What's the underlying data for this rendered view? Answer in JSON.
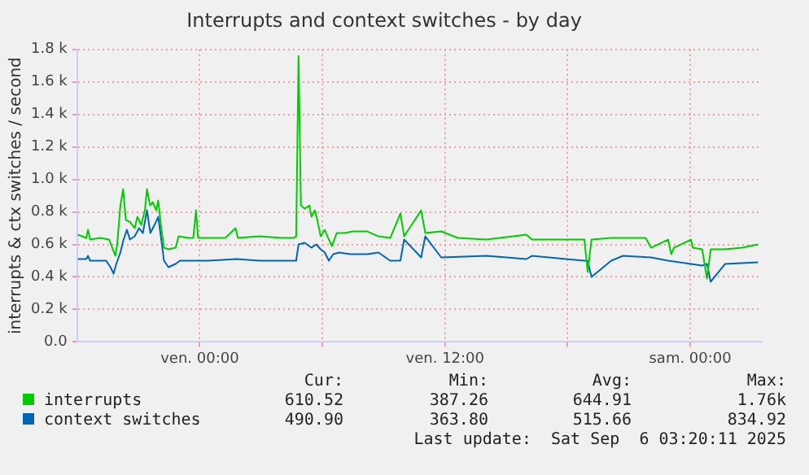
{
  "chart_data": {
    "type": "line",
    "title": "Interrupts and context switches - by day",
    "ylabel": "interrupts & ctx switches / second",
    "xlim": [
      "2025-09-04T18:00",
      "2025-09-06T03:30"
    ],
    "xticks": [
      {
        "value": "2025-09-05T00:00",
        "label": "ven. 00:00"
      },
      {
        "value": "2025-09-05T06:00",
        "label": null
      },
      {
        "value": "2025-09-05T12:00",
        "label": "ven. 12:00"
      },
      {
        "value": "2025-09-05T18:00",
        "label": null
      },
      {
        "value": "2025-09-06T00:00",
        "label": "sam. 00:00"
      }
    ],
    "ylim": [
      0,
      1800
    ],
    "yticks": [
      {
        "value": 0,
        "label": "0.0"
      },
      {
        "value": 200,
        "label": "0.2 k"
      },
      {
        "value": 400,
        "label": "0.4 k"
      },
      {
        "value": 600,
        "label": "0.6 k"
      },
      {
        "value": 800,
        "label": "0.8 k"
      },
      {
        "value": 1000,
        "label": "1.0 k"
      },
      {
        "value": 1200,
        "label": "1.2 k"
      },
      {
        "value": 1400,
        "label": "1.4 k"
      },
      {
        "value": 1600,
        "label": "1.6 k"
      },
      {
        "value": 1800,
        "label": "1.8 k"
      }
    ],
    "grid": true,
    "legend": "bottom left",
    "marker": "none",
    "series": [
      {
        "name": "interrupts",
        "color": "#00cc00",
        "x": [
          "2025-09-04T18:02",
          "2025-09-04T18:27",
          "2025-09-04T18:32",
          "2025-09-04T18:38",
          "2025-09-04T19:08",
          "2025-09-04T19:34",
          "2025-09-04T19:45",
          "2025-09-04T19:52",
          "2025-09-04T19:58",
          "2025-09-04T20:07",
          "2025-09-04T20:15",
          "2025-09-04T20:23",
          "2025-09-04T20:35",
          "2025-09-04T20:49",
          "2025-09-04T20:57",
          "2025-09-04T21:08",
          "2025-09-04T21:19",
          "2025-09-04T21:25",
          "2025-09-04T21:34",
          "2025-09-04T21:42",
          "2025-09-04T21:52",
          "2025-09-04T21:58",
          "2025-09-04T22:07",
          "2025-09-04T22:15",
          "2025-09-04T22:28",
          "2025-09-04T22:49",
          "2025-09-04T22:58",
          "2025-09-04T23:26",
          "2025-09-04T23:41",
          "2025-09-04T23:49",
          "2025-09-04T23:55",
          "2025-09-05T00:25",
          "2025-09-05T01:15",
          "2025-09-05T01:45",
          "2025-09-05T01:52",
          "2025-09-05T02:55",
          "2025-09-05T04:02",
          "2025-09-05T04:35",
          "2025-09-05T04:43",
          "2025-09-05T04:50",
          "2025-09-05T04:57",
          "2025-09-05T05:08",
          "2025-09-05T05:22",
          "2025-09-05T05:28",
          "2025-09-05T05:38",
          "2025-09-05T05:45",
          "2025-09-05T05:55",
          "2025-09-05T06:07",
          "2025-09-05T06:19",
          "2025-09-05T06:28",
          "2025-09-05T06:42",
          "2025-09-05T07:05",
          "2025-09-05T07:30",
          "2025-09-05T08:12",
          "2025-09-05T08:45",
          "2025-09-05T09:19",
          "2025-09-05T09:49",
          "2025-09-05T10:00",
          "2025-09-05T10:50",
          "2025-09-05T11:02",
          "2025-09-05T11:49",
          "2025-09-05T12:38",
          "2025-09-05T14:02",
          "2025-09-05T15:59",
          "2025-09-05T16:15",
          "2025-09-05T17:55",
          "2025-09-05T18:49",
          "2025-09-05T18:59",
          "2025-09-05T19:10",
          "2025-09-05T20:08",
          "2025-09-05T21:49",
          "2025-09-05T22:05",
          "2025-09-05T22:55",
          "2025-09-05T23:04",
          "2025-09-05T23:12",
          "2025-09-06T00:02",
          "2025-09-06T00:07",
          "2025-09-06T00:35",
          "2025-09-06T00:49",
          "2025-09-06T01:00",
          "2025-09-06T01:42",
          "2025-09-06T02:32",
          "2025-09-06T03:19"
        ],
        "values": [
          660,
          640,
          690,
          630,
          640,
          630,
          570,
          530,
          610,
          840,
          940,
          750,
          740,
          700,
          770,
          720,
          810,
          940,
          840,
          860,
          810,
          870,
          700,
          580,
          570,
          580,
          650,
          640,
          640,
          810,
          640,
          640,
          640,
          700,
          640,
          650,
          640,
          640,
          650,
          1760,
          840,
          820,
          840,
          770,
          810,
          750,
          650,
          690,
          630,
          590,
          670,
          670,
          680,
          680,
          650,
          640,
          790,
          650,
          810,
          670,
          680,
          640,
          630,
          660,
          630,
          630,
          630,
          430,
          630,
          640,
          640,
          580,
          630,
          540,
          580,
          630,
          580,
          570,
          390,
          570,
          570,
          580,
          600
        ]
      },
      {
        "name": "context switches",
        "color": "#0066b3",
        "x": [
          "2025-09-04T18:02",
          "2025-09-04T18:27",
          "2025-09-04T18:32",
          "2025-09-04T18:38",
          "2025-09-04T19:25",
          "2025-09-04T19:38",
          "2025-09-04T19:47",
          "2025-09-04T19:55",
          "2025-09-04T20:07",
          "2025-09-04T20:15",
          "2025-09-04T20:26",
          "2025-09-04T20:35",
          "2025-09-04T20:49",
          "2025-09-04T21:02",
          "2025-09-04T21:13",
          "2025-09-04T21:25",
          "2025-09-04T21:35",
          "2025-09-04T21:47",
          "2025-09-04T21:58",
          "2025-09-04T22:07",
          "2025-09-04T22:15",
          "2025-09-04T22:28",
          "2025-09-04T22:49",
          "2025-09-04T23:02",
          "2025-09-04T23:35",
          "2025-09-05T00:25",
          "2025-09-05T01:49",
          "2025-09-05T02:55",
          "2025-09-05T04:02",
          "2025-09-05T04:43",
          "2025-09-05T04:50",
          "2025-09-05T05:08",
          "2025-09-05T05:28",
          "2025-09-05T05:42",
          "2025-09-05T05:55",
          "2025-09-05T06:07",
          "2025-09-05T06:19",
          "2025-09-05T06:32",
          "2025-09-05T06:49",
          "2025-09-05T07:22",
          "2025-09-05T08:12",
          "2025-09-05T08:45",
          "2025-09-05T09:19",
          "2025-09-05T09:49",
          "2025-09-05T10:00",
          "2025-09-05T10:50",
          "2025-09-05T11:02",
          "2025-09-05T11:49",
          "2025-09-05T14:02",
          "2025-09-05T15:59",
          "2025-09-05T16:15",
          "2025-09-05T17:55",
          "2025-09-05T18:49",
          "2025-09-05T18:59",
          "2025-09-05T19:10",
          "2025-09-05T20:08",
          "2025-09-05T20:42",
          "2025-09-05T22:05",
          "2025-09-05T22:55",
          "2025-09-06T00:02",
          "2025-09-06T00:35",
          "2025-09-06T00:49",
          "2025-09-06T01:00",
          "2025-09-06T01:42",
          "2025-09-06T03:19"
        ],
        "values": [
          510,
          510,
          530,
          500,
          500,
          460,
          420,
          480,
          550,
          620,
          690,
          630,
          650,
          700,
          670,
          810,
          670,
          720,
          770,
          630,
          500,
          460,
          480,
          500,
          500,
          500,
          510,
          500,
          500,
          500,
          600,
          610,
          580,
          600,
          570,
          550,
          500,
          540,
          550,
          540,
          540,
          550,
          500,
          500,
          630,
          520,
          650,
          520,
          530,
          510,
          530,
          510,
          500,
          500,
          400,
          500,
          530,
          520,
          500,
          480,
          470,
          480,
          370,
          480,
          490
        ]
      }
    ],
    "annotations": [
      "Cur:",
      "Min:",
      "Avg:",
      "Max:",
      "610.52",
      "387.26",
      "644.91",
      "1.76k",
      "490.90",
      "363.80",
      "515.66",
      "834.92",
      "Last update:  Sat Sep  6 03:20:11 2025"
    ]
  }
}
